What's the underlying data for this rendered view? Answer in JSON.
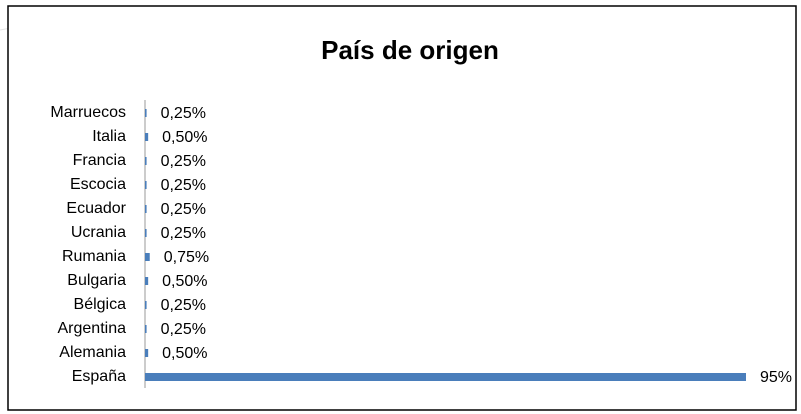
{
  "chart_data": {
    "type": "hbar",
    "title": "País de origen",
    "categories": [
      "Marruecos",
      "Italia",
      "Francia",
      "Escocia",
      "Ecuador",
      "Ucrania",
      "Rumania",
      "Bulgaria",
      "Bélgica",
      "Argentina",
      "Alemania",
      "España"
    ],
    "values": [
      0.25,
      0.5,
      0.25,
      0.25,
      0.25,
      0.25,
      0.75,
      0.5,
      0.25,
      0.25,
      0.5,
      95
    ],
    "value_labels": [
      "0,25%",
      "0,50%",
      "0,25%",
      "0,25%",
      "0,25%",
      "0,25%",
      "0,75%",
      "0,50%",
      "0,25%",
      "0,25%",
      "0,50%",
      "95%"
    ],
    "color": "#4a7ebb",
    "xlim": [
      0,
      95
    ]
  }
}
